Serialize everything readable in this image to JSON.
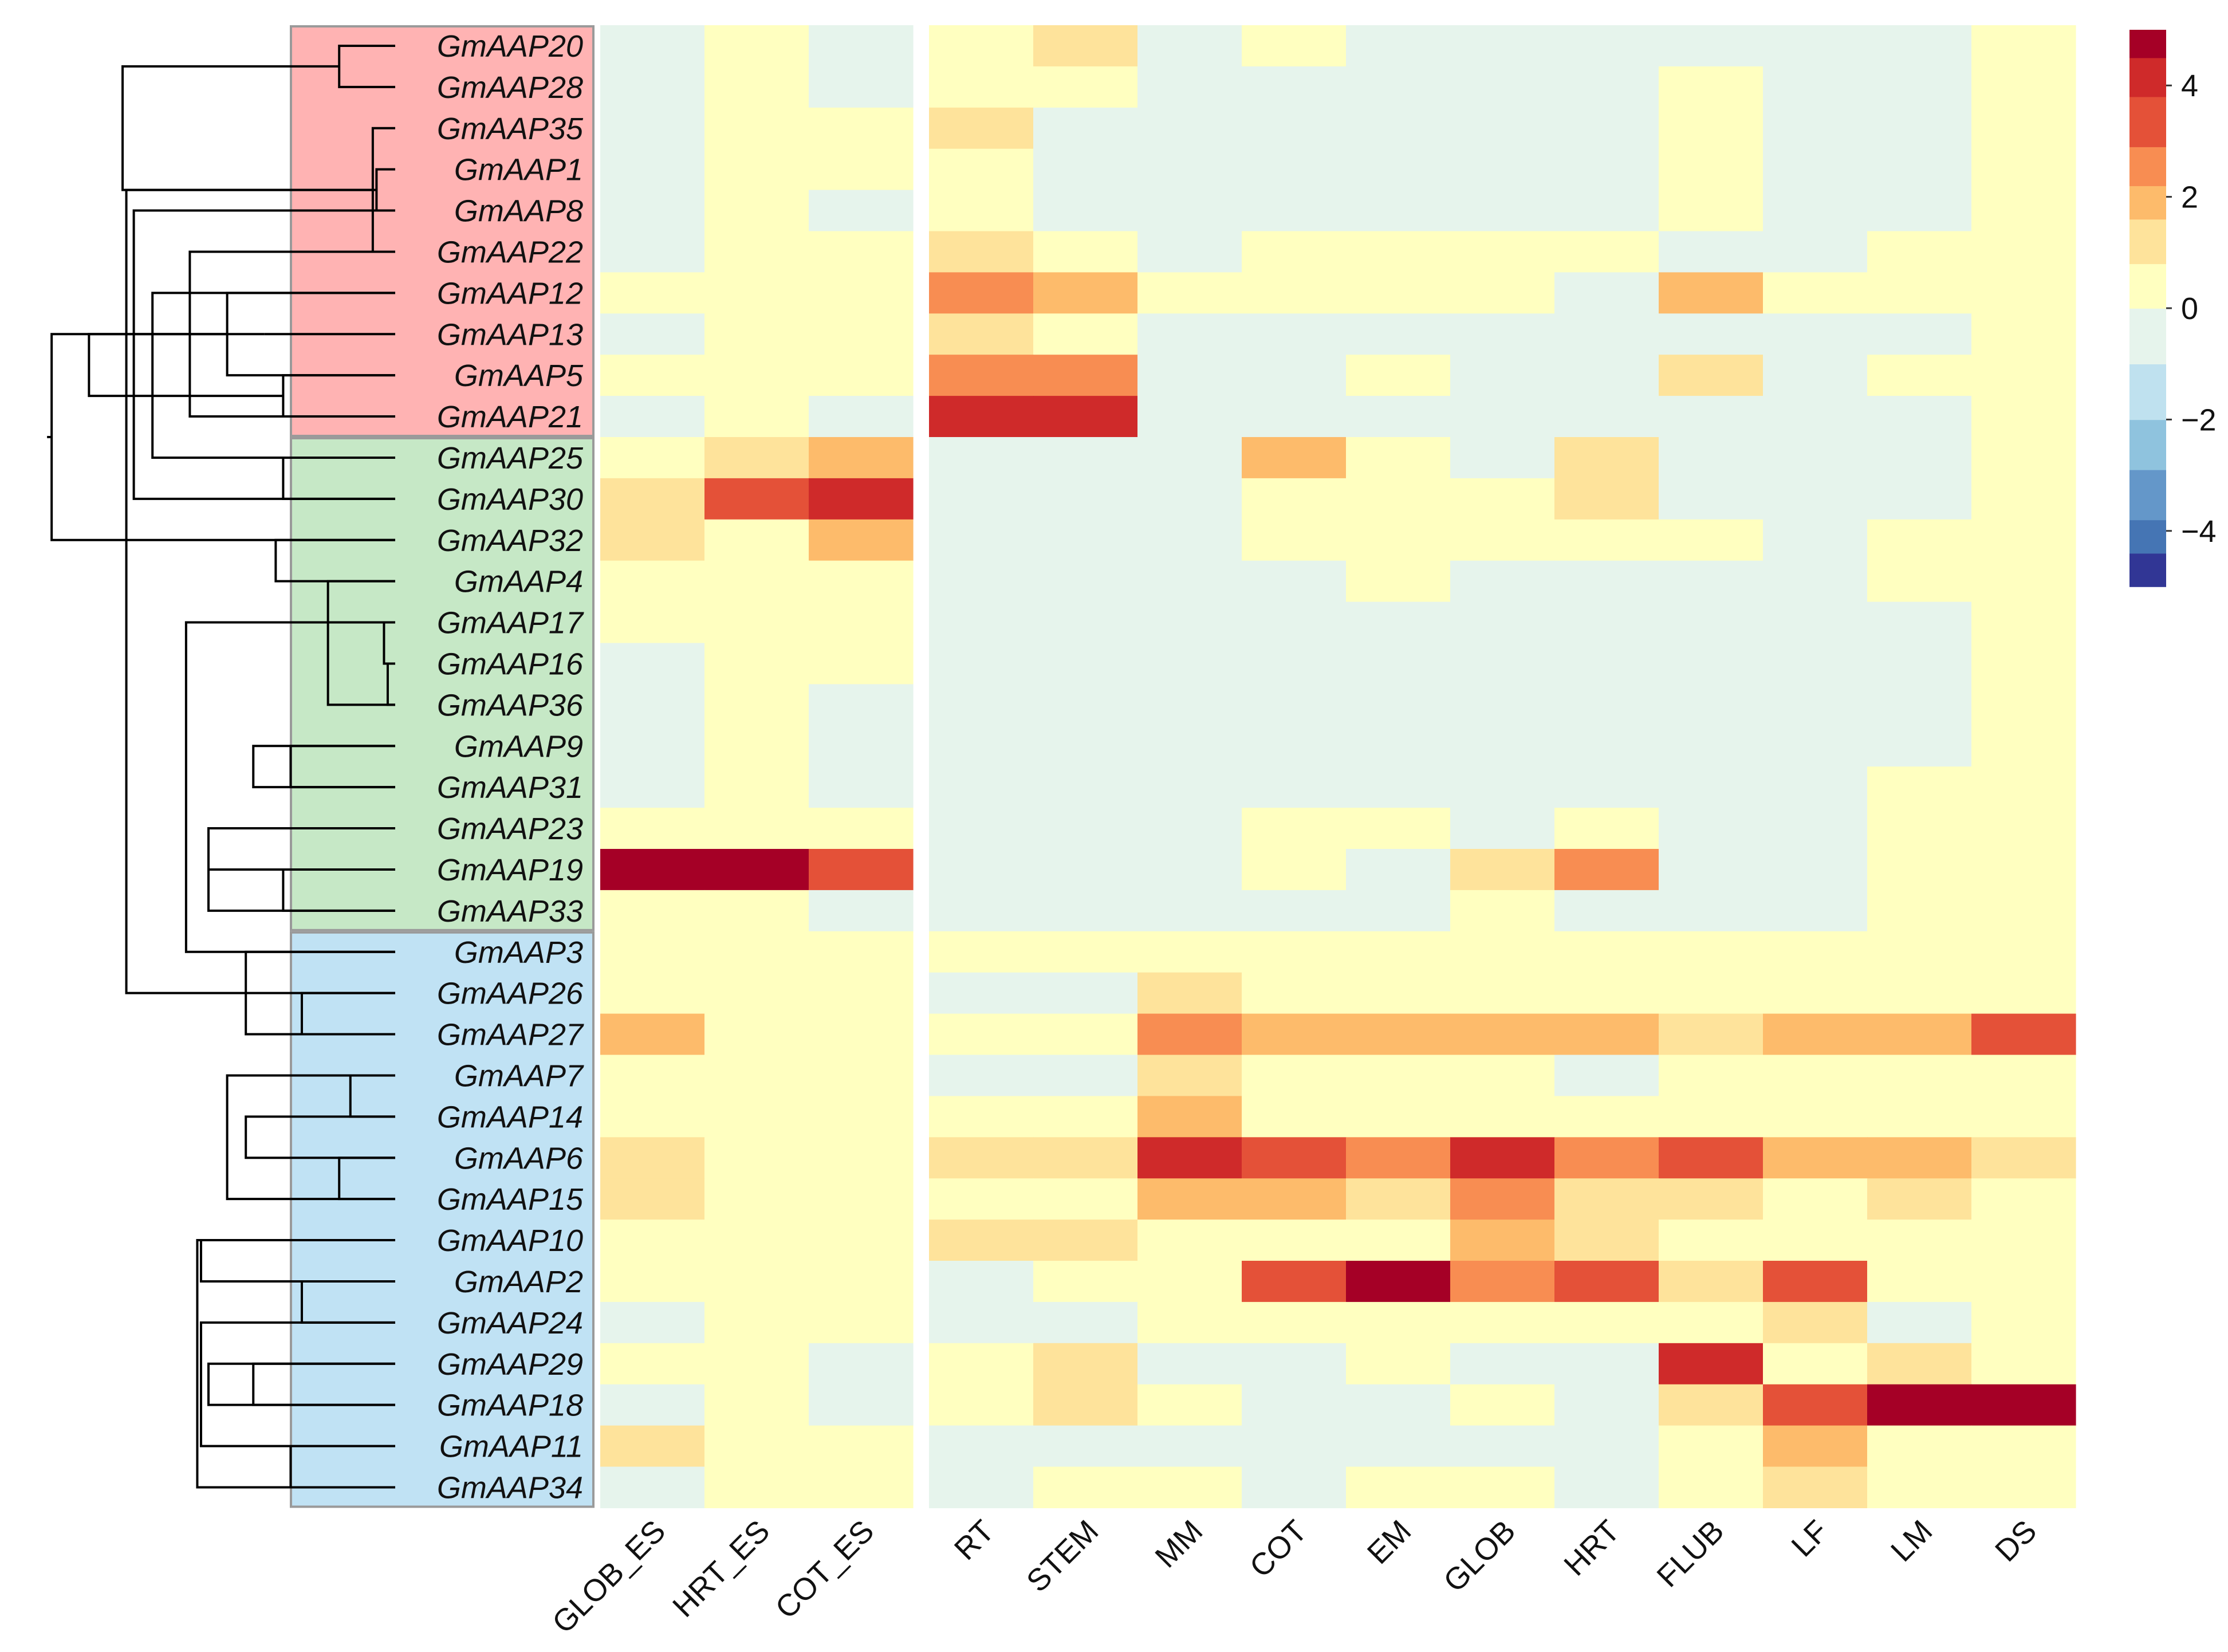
{
  "chart_data": {
    "type": "heatmap",
    "title": "",
    "columns": [
      "GLOB_ES",
      "HRT_ES",
      "COT_ES",
      "RT",
      "STEM",
      "MM",
      "COT",
      "EM",
      "GLOB",
      "HRT",
      "FLUB",
      "LF",
      "LM",
      "DS"
    ],
    "column_groups": [
      {
        "columns": [
          "GLOB_ES",
          "HRT_ES",
          "COT_ES"
        ]
      },
      {
        "columns": [
          "RT",
          "STEM",
          "MM",
          "COT",
          "EM",
          "GLOB",
          "HRT",
          "FLUB",
          "LF",
          "LM",
          "DS"
        ]
      }
    ],
    "rows": [
      {
        "gene": "GmAAP20",
        "clade": "red",
        "values": [
          -0.6,
          0.2,
          -0.6,
          0.2,
          1.2,
          -0.6,
          0.2,
          -0.6,
          -0.6,
          -0.6,
          -0.6,
          -0.6,
          -0.6,
          0.2
        ]
      },
      {
        "gene": "GmAAP28",
        "clade": "red",
        "values": [
          -0.6,
          0.2,
          -0.6,
          0.2,
          0.2,
          -0.6,
          -0.6,
          -0.6,
          -0.6,
          -0.6,
          0.2,
          -0.6,
          -0.6,
          0.2
        ]
      },
      {
        "gene": "GmAAP35",
        "clade": "red",
        "values": [
          -0.6,
          0.2,
          0.2,
          1.2,
          -0.6,
          -0.6,
          -0.6,
          -0.6,
          -0.6,
          -0.6,
          0.2,
          -0.6,
          -0.6,
          0.2
        ]
      },
      {
        "gene": "GmAAP1",
        "clade": "red",
        "values": [
          -0.6,
          0.2,
          0.2,
          0.2,
          -0.6,
          -0.6,
          -0.6,
          -0.6,
          -0.6,
          -0.6,
          0.2,
          -0.6,
          -0.6,
          0.2
        ]
      },
      {
        "gene": "GmAAP8",
        "clade": "red",
        "values": [
          -0.6,
          0.2,
          -0.6,
          0.2,
          -0.6,
          -0.6,
          -0.6,
          -0.6,
          -0.6,
          -0.6,
          0.2,
          -0.6,
          -0.6,
          0.2
        ]
      },
      {
        "gene": "GmAAP22",
        "clade": "red",
        "values": [
          -0.6,
          0.2,
          0.2,
          1.2,
          0.2,
          -0.6,
          0.2,
          0.2,
          0.2,
          0.2,
          -0.6,
          -0.6,
          0.2,
          0.2
        ]
      },
      {
        "gene": "GmAAP12",
        "clade": "red",
        "values": [
          0.2,
          0.2,
          0.2,
          2.5,
          1.8,
          0.2,
          0.2,
          0.2,
          0.2,
          -0.6,
          1.8,
          0.2,
          0.2,
          0.2
        ]
      },
      {
        "gene": "GmAAP13",
        "clade": "red",
        "values": [
          -0.6,
          0.2,
          0.2,
          1.2,
          0.2,
          -0.6,
          -0.6,
          -0.6,
          -0.6,
          -0.6,
          -0.6,
          -0.6,
          -0.6,
          0.2
        ]
      },
      {
        "gene": "GmAAP5",
        "clade": "red",
        "values": [
          0.2,
          0.2,
          0.2,
          2.5,
          2.5,
          -0.6,
          -0.6,
          0.2,
          -0.6,
          -0.6,
          1.2,
          -0.6,
          0.2,
          0.2
        ]
      },
      {
        "gene": "GmAAP21",
        "clade": "red",
        "values": [
          -0.6,
          0.2,
          -0.6,
          4.2,
          4.2,
          -0.6,
          -0.6,
          -0.6,
          -0.6,
          -0.6,
          -0.6,
          -0.6,
          -0.6,
          0.2
        ]
      },
      {
        "gene": "GmAAP25",
        "clade": "green",
        "values": [
          0.2,
          1.2,
          1.8,
          -0.6,
          -0.6,
          -0.6,
          1.8,
          0.2,
          -0.6,
          1.2,
          -0.6,
          -0.6,
          -0.6,
          0.2
        ]
      },
      {
        "gene": "GmAAP30",
        "clade": "green",
        "values": [
          1.2,
          3.3,
          4.2,
          -0.6,
          -0.6,
          -0.6,
          0.2,
          0.2,
          0.2,
          1.2,
          -0.6,
          -0.6,
          -0.6,
          0.2
        ]
      },
      {
        "gene": "GmAAP32",
        "clade": "green",
        "values": [
          1.2,
          0.2,
          1.8,
          -0.6,
          -0.6,
          -0.6,
          0.2,
          0.2,
          0.2,
          0.2,
          0.2,
          -0.6,
          0.2,
          0.2
        ]
      },
      {
        "gene": "GmAAP4",
        "clade": "green",
        "values": [
          0.2,
          0.2,
          0.2,
          -0.6,
          -0.6,
          -0.6,
          -0.6,
          0.2,
          -0.6,
          -0.6,
          -0.6,
          -0.6,
          0.2,
          0.2
        ]
      },
      {
        "gene": "GmAAP17",
        "clade": "green",
        "values": [
          0.2,
          0.2,
          0.2,
          -0.6,
          -0.6,
          -0.6,
          -0.6,
          -0.6,
          -0.6,
          -0.6,
          -0.6,
          -0.6,
          -0.6,
          0.2
        ]
      },
      {
        "gene": "GmAAP16",
        "clade": "green",
        "values": [
          -0.6,
          0.2,
          0.2,
          -0.6,
          -0.6,
          -0.6,
          -0.6,
          -0.6,
          -0.6,
          -0.6,
          -0.6,
          -0.6,
          -0.6,
          0.2
        ]
      },
      {
        "gene": "GmAAP36",
        "clade": "green",
        "values": [
          -0.6,
          0.2,
          -0.6,
          -0.6,
          -0.6,
          -0.6,
          -0.6,
          -0.6,
          -0.6,
          -0.6,
          -0.6,
          -0.6,
          -0.6,
          0.2
        ]
      },
      {
        "gene": "GmAAP9",
        "clade": "green",
        "values": [
          -0.6,
          0.2,
          -0.6,
          -0.6,
          -0.6,
          -0.6,
          -0.6,
          -0.6,
          -0.6,
          -0.6,
          -0.6,
          -0.6,
          -0.6,
          0.2
        ]
      },
      {
        "gene": "GmAAP31",
        "clade": "green",
        "values": [
          -0.6,
          0.2,
          -0.6,
          -0.6,
          -0.6,
          -0.6,
          -0.6,
          -0.6,
          -0.6,
          -0.6,
          -0.6,
          -0.6,
          0.2,
          0.2
        ]
      },
      {
        "gene": "GmAAP23",
        "clade": "green",
        "values": [
          0.2,
          0.2,
          0.2,
          -0.6,
          -0.6,
          -0.6,
          0.2,
          0.2,
          -0.6,
          0.2,
          -0.6,
          -0.6,
          0.2,
          0.2
        ]
      },
      {
        "gene": "GmAAP19",
        "clade": "green",
        "values": [
          5.0,
          5.0,
          3.3,
          -0.6,
          -0.6,
          -0.6,
          0.2,
          -0.6,
          1.2,
          2.5,
          -0.6,
          -0.6,
          0.2,
          0.2
        ]
      },
      {
        "gene": "GmAAP33",
        "clade": "green",
        "values": [
          0.2,
          0.2,
          -0.6,
          -0.6,
          -0.6,
          -0.6,
          -0.6,
          -0.6,
          0.2,
          -0.6,
          -0.6,
          -0.6,
          0.2,
          0.2
        ]
      },
      {
        "gene": "GmAAP3",
        "clade": "blue",
        "values": [
          0.2,
          0.2,
          0.2,
          0.2,
          0.2,
          0.2,
          0.2,
          0.2,
          0.2,
          0.2,
          0.2,
          0.2,
          0.2,
          0.2
        ]
      },
      {
        "gene": "GmAAP26",
        "clade": "blue",
        "values": [
          0.2,
          0.2,
          0.2,
          -0.6,
          -0.6,
          1.2,
          0.2,
          0.2,
          0.2,
          0.2,
          0.2,
          0.2,
          0.2,
          0.2
        ]
      },
      {
        "gene": "GmAAP27",
        "clade": "blue",
        "values": [
          1.8,
          0.2,
          0.2,
          0.2,
          0.2,
          2.5,
          1.8,
          1.8,
          1.8,
          1.8,
          1.2,
          1.8,
          1.8,
          3.3
        ]
      },
      {
        "gene": "GmAAP7",
        "clade": "blue",
        "values": [
          0.2,
          0.2,
          0.2,
          -0.6,
          -0.6,
          1.2,
          0.2,
          0.2,
          0.2,
          -0.6,
          0.2,
          0.2,
          0.2,
          0.2
        ]
      },
      {
        "gene": "GmAAP14",
        "clade": "blue",
        "values": [
          0.2,
          0.2,
          0.2,
          0.2,
          0.2,
          1.8,
          0.2,
          0.2,
          0.2,
          0.2,
          0.2,
          0.2,
          0.2,
          0.2
        ]
      },
      {
        "gene": "GmAAP6",
        "clade": "blue",
        "values": [
          1.2,
          0.2,
          0.2,
          1.2,
          1.2,
          4.2,
          3.3,
          2.5,
          4.2,
          2.5,
          3.3,
          1.8,
          1.8,
          1.2
        ]
      },
      {
        "gene": "GmAAP15",
        "clade": "blue",
        "values": [
          1.2,
          0.2,
          0.2,
          0.2,
          0.2,
          1.8,
          1.8,
          1.2,
          2.5,
          1.2,
          1.2,
          0.2,
          1.2,
          0.2
        ]
      },
      {
        "gene": "GmAAP10",
        "clade": "blue",
        "values": [
          0.2,
          0.2,
          0.2,
          1.2,
          1.2,
          0.2,
          0.2,
          0.2,
          1.8,
          1.2,
          0.2,
          0.2,
          0.2,
          0.2
        ]
      },
      {
        "gene": "GmAAP2",
        "clade": "blue",
        "values": [
          0.2,
          0.2,
          0.2,
          -0.6,
          0.2,
          0.2,
          3.3,
          5.0,
          2.5,
          3.3,
          1.2,
          3.3,
          0.2,
          0.2
        ]
      },
      {
        "gene": "GmAAP24",
        "clade": "blue",
        "values": [
          -0.6,
          0.2,
          0.2,
          -0.6,
          -0.6,
          0.2,
          0.2,
          0.2,
          0.2,
          0.2,
          0.2,
          1.2,
          -0.6,
          0.2
        ]
      },
      {
        "gene": "GmAAP29",
        "clade": "blue",
        "values": [
          0.2,
          0.2,
          -0.6,
          0.2,
          1.2,
          -0.6,
          -0.6,
          0.2,
          -0.6,
          -0.6,
          4.2,
          0.2,
          1.2,
          0.2
        ]
      },
      {
        "gene": "GmAAP18",
        "clade": "blue",
        "values": [
          -0.6,
          0.2,
          -0.6,
          0.2,
          1.2,
          0.2,
          -0.6,
          -0.6,
          0.2,
          -0.6,
          1.2,
          3.3,
          5.0,
          5.0
        ]
      },
      {
        "gene": "GmAAP11",
        "clade": "blue",
        "values": [
          1.2,
          0.2,
          0.2,
          -0.6,
          -0.6,
          -0.6,
          -0.6,
          -0.6,
          -0.6,
          -0.6,
          0.2,
          1.8,
          0.2,
          0.2
        ]
      },
      {
        "gene": "GmAAP34",
        "clade": "blue",
        "values": [
          -0.6,
          0.2,
          0.2,
          -0.6,
          0.2,
          0.2,
          -0.6,
          0.2,
          0.2,
          -0.6,
          0.2,
          1.2,
          0.2,
          0.2
        ]
      }
    ],
    "clades": [
      {
        "name": "red",
        "color": "#ffb3b3",
        "first": 0,
        "last": 9
      },
      {
        "name": "green",
        "color": "#c6e8c6",
        "first": 10,
        "last": 21
      },
      {
        "name": "blue",
        "color": "#c0e2f4",
        "first": 22,
        "last": 35
      }
    ],
    "color_scale": {
      "range": [
        -5,
        5
      ],
      "bins": [
        {
          "min": -5.0,
          "max": -4.4,
          "color": "#313695"
        },
        {
          "min": -4.4,
          "max": -3.8,
          "color": "#4575b4"
        },
        {
          "min": -3.8,
          "max": -2.9,
          "color": "#6497c9"
        },
        {
          "min": -2.9,
          "max": -2.0,
          "color": "#8fc3de"
        },
        {
          "min": -2.0,
          "max": -1.0,
          "color": "#bfe1ef"
        },
        {
          "min": -1.0,
          "max": 0.0,
          "color": "#e6f4ec"
        },
        {
          "min": 0.0,
          "max": 0.8,
          "color": "#ffffc0"
        },
        {
          "min": 0.8,
          "max": 1.6,
          "color": "#fee39b"
        },
        {
          "min": 1.6,
          "max": 2.2,
          "color": "#fdbb6b"
        },
        {
          "min": 2.2,
          "max": 2.9,
          "color": "#f88d52"
        },
        {
          "min": 2.9,
          "max": 3.8,
          "color": "#e45138"
        },
        {
          "min": 3.8,
          "max": 4.5,
          "color": "#cf2a2a"
        },
        {
          "min": 4.5,
          "max": 5.0,
          "color": "#a50026"
        }
      ],
      "ticks": [
        {
          "value": 4,
          "label": "4"
        },
        {
          "value": 2,
          "label": "2"
        },
        {
          "value": 0,
          "label": "0"
        },
        {
          "value": -2,
          "label": "−2"
        },
        {
          "value": -4,
          "label": "−4"
        }
      ]
    },
    "dendrogram": [
      [
        "GmAAP20",
        "GmAAP28",
        0.85
      ],
      [
        "GmAAP1",
        "GmAAP8",
        0.95
      ],
      [
        "GmAAP35",
        5,
        0.94
      ],
      [
        "GmAAP5",
        "GmAAP21",
        0.7
      ],
      [
        "GmAAP13",
        7,
        0.65
      ],
      [
        "GmAAP12",
        8,
        0.55
      ],
      [
        "GmAAP22",
        9,
        0.45
      ],
      [
        6,
        10,
        0.35
      ],
      [
        4,
        11,
        0.3
      ],
      [
        "GmAAP25",
        "GmAAP30",
        0.7
      ],
      [
        13,
        "GmAAP32",
        0.68
      ],
      [
        "GmAAP16",
        "GmAAP36",
        0.98
      ],
      [
        "GmAAP17",
        15,
        0.97
      ],
      [
        "GmAAP4",
        16,
        0.82
      ],
      [
        "GmAAP9",
        "GmAAP31",
        0.72
      ],
      [
        17,
        18,
        0.62
      ],
      [
        "GmAAP19",
        "GmAAP33",
        0.7
      ],
      [
        "GmAAP23",
        20,
        0.5
      ],
      [
        19,
        21,
        0.5
      ],
      [
        14,
        22,
        0.44
      ],
      [
        "GmAAP26",
        "GmAAP27",
        0.75
      ],
      [
        "GmAAP3",
        24,
        0.6
      ],
      [
        "GmAAP7",
        "GmAAP14",
        0.88
      ],
      [
        "GmAAP6",
        "GmAAP15",
        0.85
      ],
      [
        26,
        27,
        0.6
      ],
      [
        25,
        28,
        0.55
      ],
      [
        "GmAAP2",
        "GmAAP24",
        0.75
      ],
      [
        "GmAAP10",
        30,
        0.48
      ],
      [
        "GmAAP11",
        "GmAAP34",
        0.72
      ],
      [
        32,
        "GmAAP18",
        0.62
      ],
      [
        33,
        "GmAAP29",
        0.5
      ],
      [
        31,
        34,
        0.48
      ],
      [
        29,
        35,
        0.47
      ],
      [
        36,
        37,
        0.27
      ],
      [
        23,
        38,
        0.28
      ],
      [
        39,
        40,
        0.18
      ],
      [
        12,
        41,
        0.08
      ]
    ]
  }
}
